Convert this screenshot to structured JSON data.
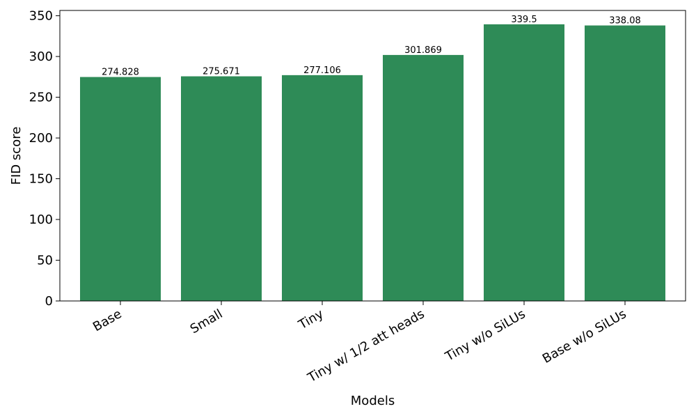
{
  "chart_data": {
    "type": "bar",
    "title": "",
    "xlabel": "Models",
    "ylabel": "FID score",
    "categories": [
      "Base",
      "Small",
      "Tiny",
      "Tiny w/ 1/2 att heads",
      "Tiny w/o SiLUs",
      "Base w/o SiLUs"
    ],
    "values": [
      274.828,
      275.671,
      277.106,
      301.869,
      339.5,
      338.08
    ],
    "data_labels": [
      "274.828",
      "275.671",
      "277.106",
      "301.869",
      "339.5",
      "338.08"
    ],
    "ylim": [
      0,
      356.5
    ],
    "yticks": [
      0,
      50,
      100,
      150,
      200,
      250,
      300,
      350
    ],
    "grid": false,
    "legend": "none",
    "bar_color": "#2e8b57"
  }
}
